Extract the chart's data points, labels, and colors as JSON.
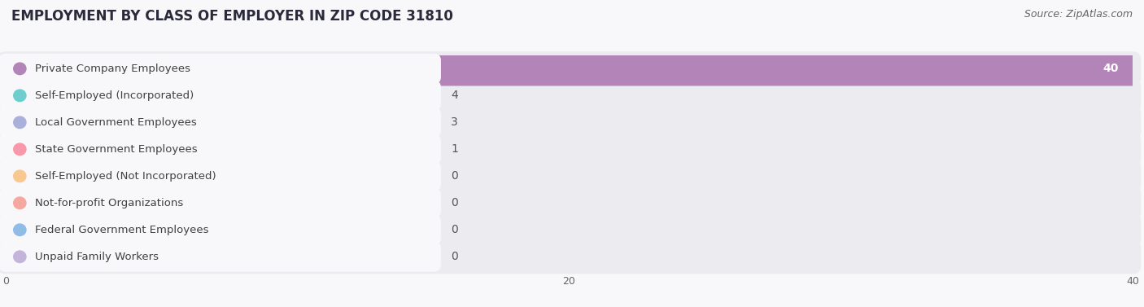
{
  "title": "EMPLOYMENT BY CLASS OF EMPLOYER IN ZIP CODE 31810",
  "source": "Source: ZipAtlas.com",
  "categories": [
    "Private Company Employees",
    "Self-Employed (Incorporated)",
    "Local Government Employees",
    "State Government Employees",
    "Self-Employed (Not Incorporated)",
    "Not-for-profit Organizations",
    "Federal Government Employees",
    "Unpaid Family Workers"
  ],
  "values": [
    40,
    4,
    3,
    1,
    0,
    0,
    0,
    0
  ],
  "bar_colors": [
    "#b384b8",
    "#6ecece",
    "#aab0dc",
    "#f898a8",
    "#f8c890",
    "#f4a8a0",
    "#90bce8",
    "#c4b4dc"
  ],
  "xlim_max": 40,
  "xticks": [
    0,
    20,
    40
  ],
  "title_fontsize": 12,
  "source_fontsize": 9,
  "bar_label_fontsize": 10,
  "category_fontsize": 9.5,
  "row_bg_color": "#ebebf0",
  "label_box_color": "#f8f8fa",
  "fig_bg_color": "#f8f8fa"
}
